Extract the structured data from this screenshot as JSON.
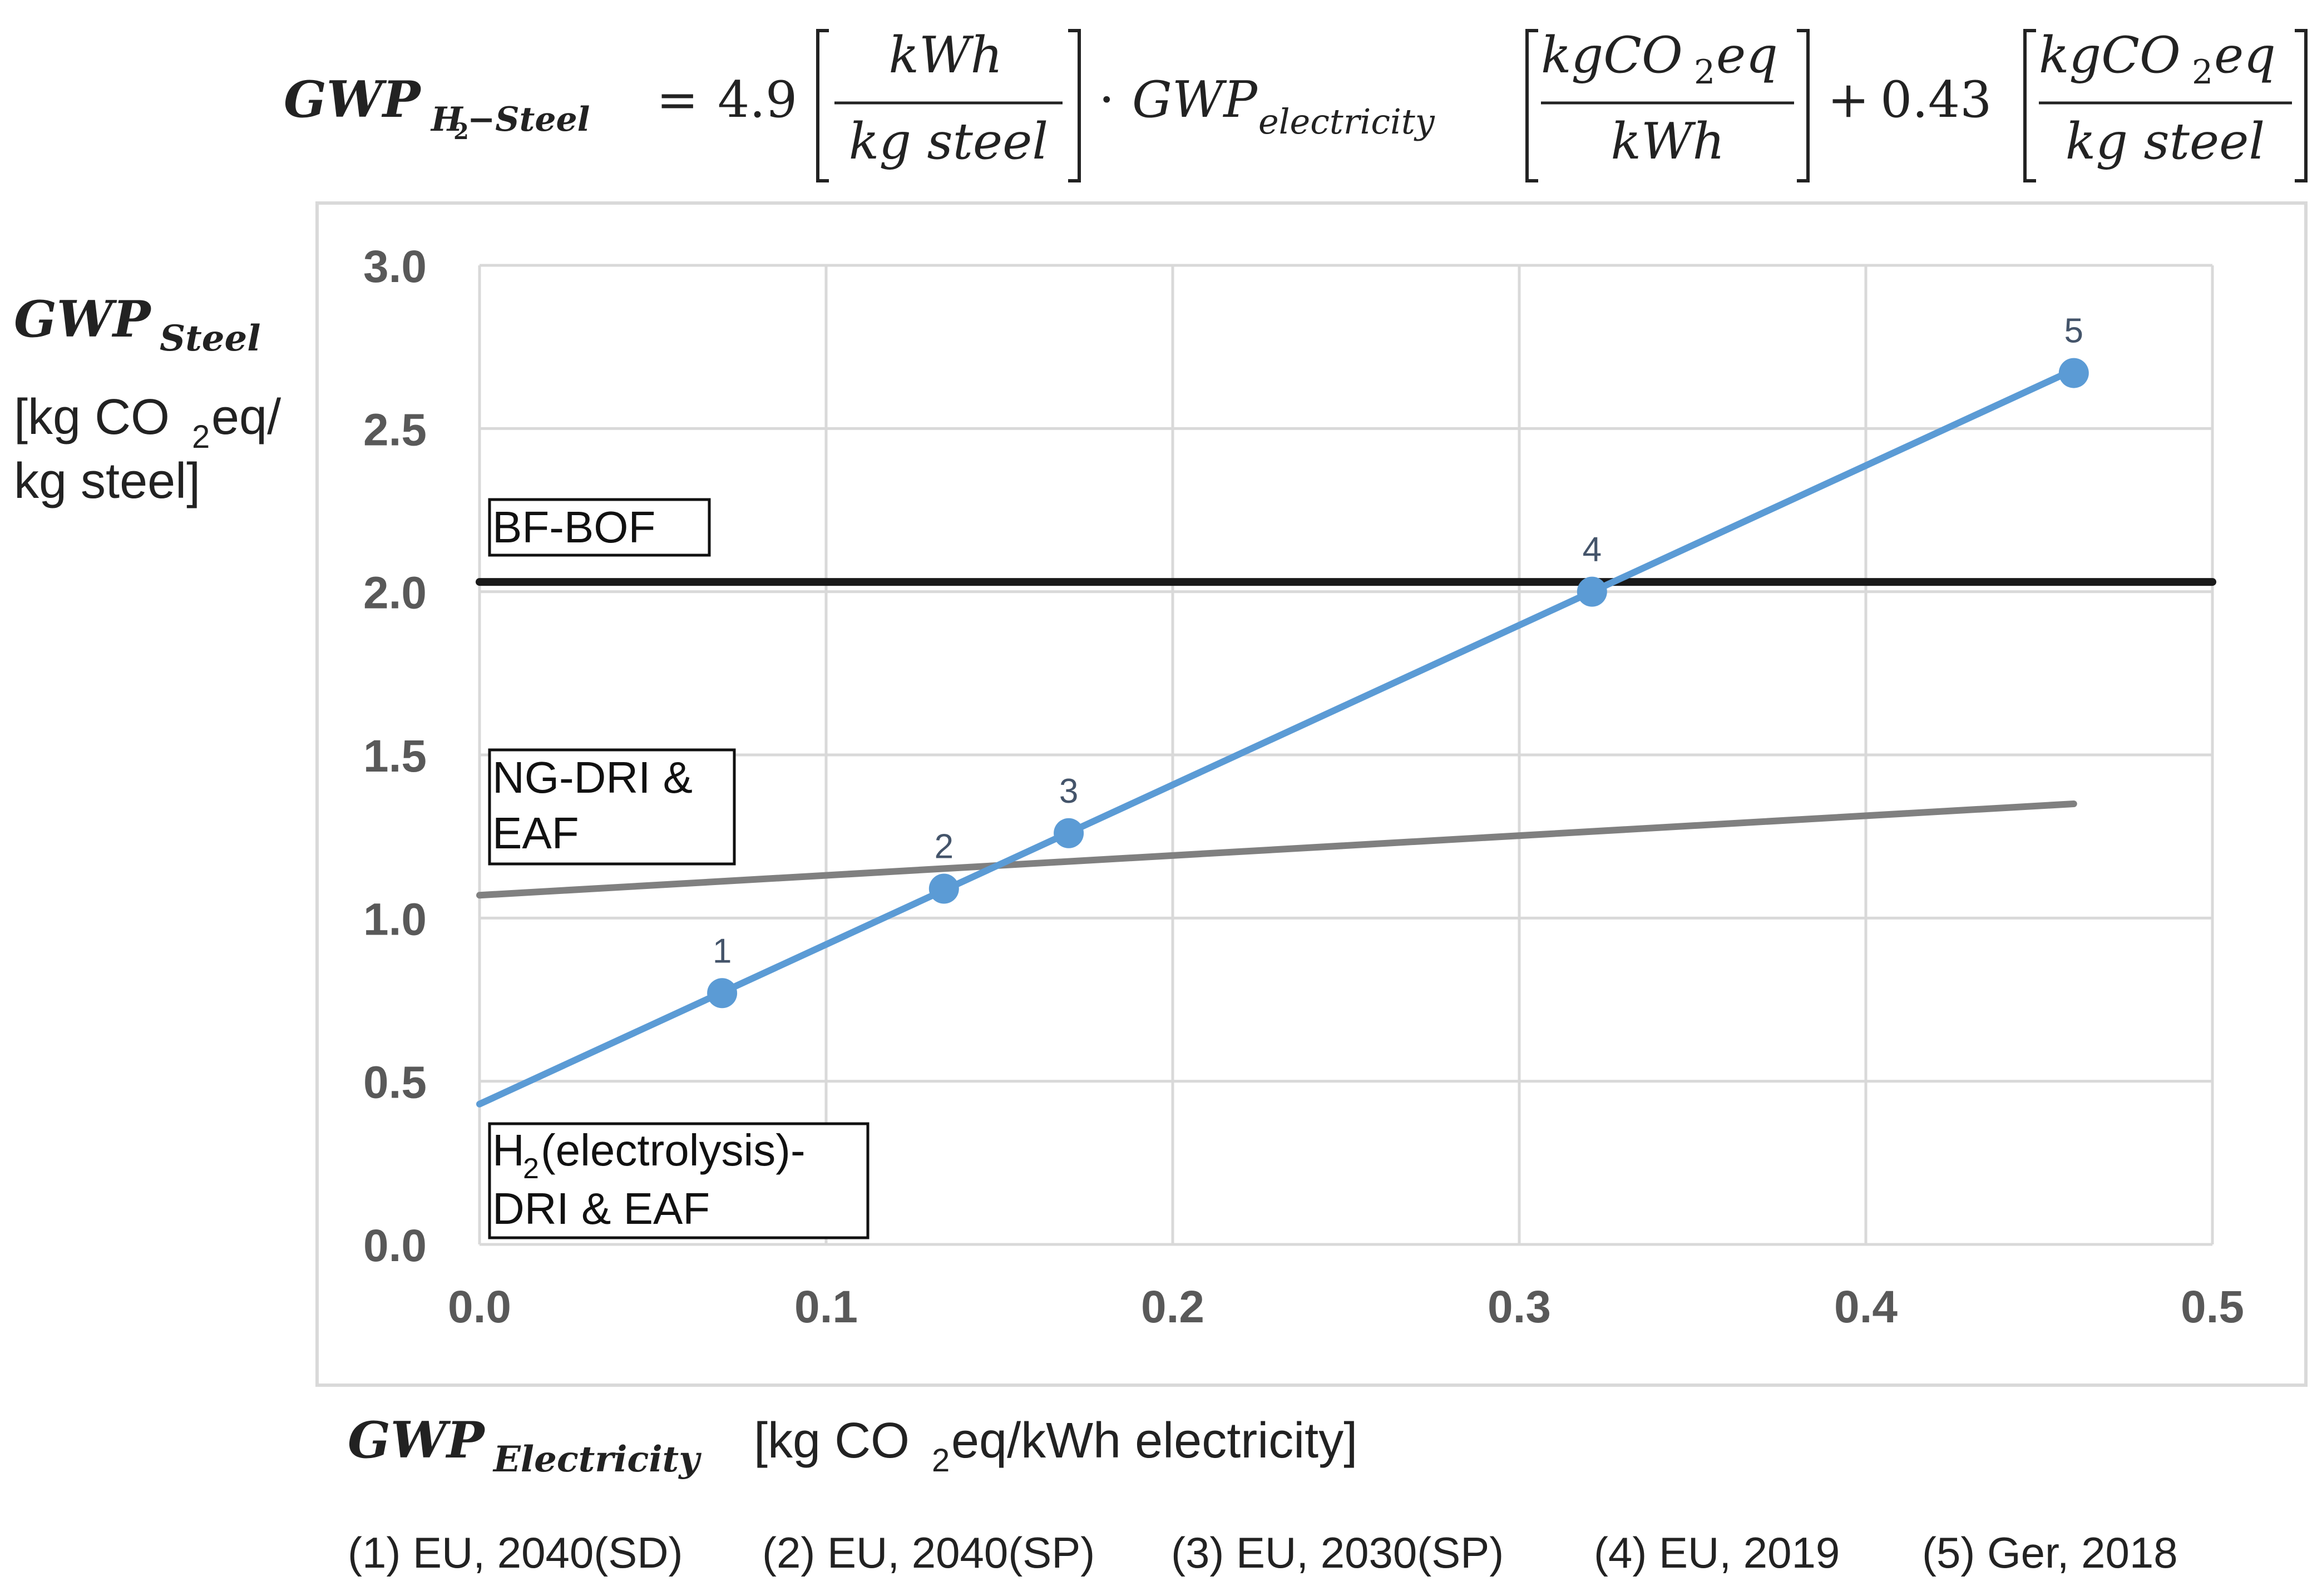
{
  "formula": {
    "lhs": "GWP",
    "lhs_sub": "H",
    "lhs_sub2": "2",
    "lhs_sub3": "−Steel",
    "equals": "=",
    "coef1": "4.9",
    "frac1_num": "kWh",
    "frac1_den": "kg steel",
    "dot": "·",
    "elec": "GWP",
    "elec_sub": "electricity",
    "frac2_num_a": "kgCO",
    "frac2_num_sub": "2",
    "frac2_num_b": "eq",
    "frac2_den": "kWh",
    "plus": "+",
    "coef2": "0.43",
    "frac3_num_a": "kgCO",
    "frac3_num_sub": "2",
    "frac3_num_b": "eq",
    "frac3_den": "kg steel"
  },
  "y_label": {
    "main": "GWP",
    "sub": "Steel",
    "unit_line1_a": "[kg CO",
    "unit_line1_sub": "2",
    "unit_line1_b": "eq/",
    "unit_line2": "kg steel]"
  },
  "x_label": {
    "main": "GWP",
    "sub": "Electricity",
    "unit_a": "[kg CO",
    "unit_sub": "2",
    "unit_b": "eq/kWh electricity]"
  },
  "footnotes": [
    "(1) EU, 2040(SD)",
    "(2) EU, 2040(SP)",
    "(3) EU, 2030(SP)",
    "(4) EU, 2019",
    "(5) Ger, 2018"
  ],
  "labels": {
    "bfbof": "BF-BOF",
    "ngdri_1": "NG-DRI &",
    "ngdri_2": "EAF",
    "h2_1a": "H",
    "h2_1sub": "2",
    "h2_1b": "(electrolysis)-",
    "h2_2": "DRI & EAF"
  },
  "chart_data": {
    "type": "line",
    "x_ticks": [
      "0.0",
      "0.1",
      "0.2",
      "0.3",
      "0.4",
      "0.5"
    ],
    "y_ticks": [
      "0.0",
      "0.5",
      "1.0",
      "1.5",
      "2.0",
      "2.5",
      "3.0"
    ],
    "xlim": [
      0,
      0.5
    ],
    "ylim": [
      0,
      3.0
    ],
    "grid": true,
    "series": [
      {
        "name": "H2(electrolysis)-DRI & EAF",
        "color": "#5b9bd5",
        "line": [
          [
            0.0,
            0.43
          ],
          [
            0.46,
            2.68
          ]
        ],
        "points": [
          {
            "label": "1",
            "x": 0.07,
            "y": 0.77
          },
          {
            "label": "2",
            "x": 0.134,
            "y": 1.09
          },
          {
            "label": "3",
            "x": 0.17,
            "y": 1.26
          },
          {
            "label": "4",
            "x": 0.321,
            "y": 2.0
          },
          {
            "label": "5",
            "x": 0.46,
            "y": 2.67
          }
        ]
      },
      {
        "name": "NG-DRI & EAF",
        "color": "#808080",
        "line": [
          [
            0.0,
            1.07
          ],
          [
            0.46,
            1.35
          ]
        ]
      },
      {
        "name": "BF-BOF",
        "color": "#1a1a1a",
        "line": [
          [
            0.0,
            2.03
          ],
          [
            0.5,
            2.03
          ]
        ]
      }
    ]
  }
}
